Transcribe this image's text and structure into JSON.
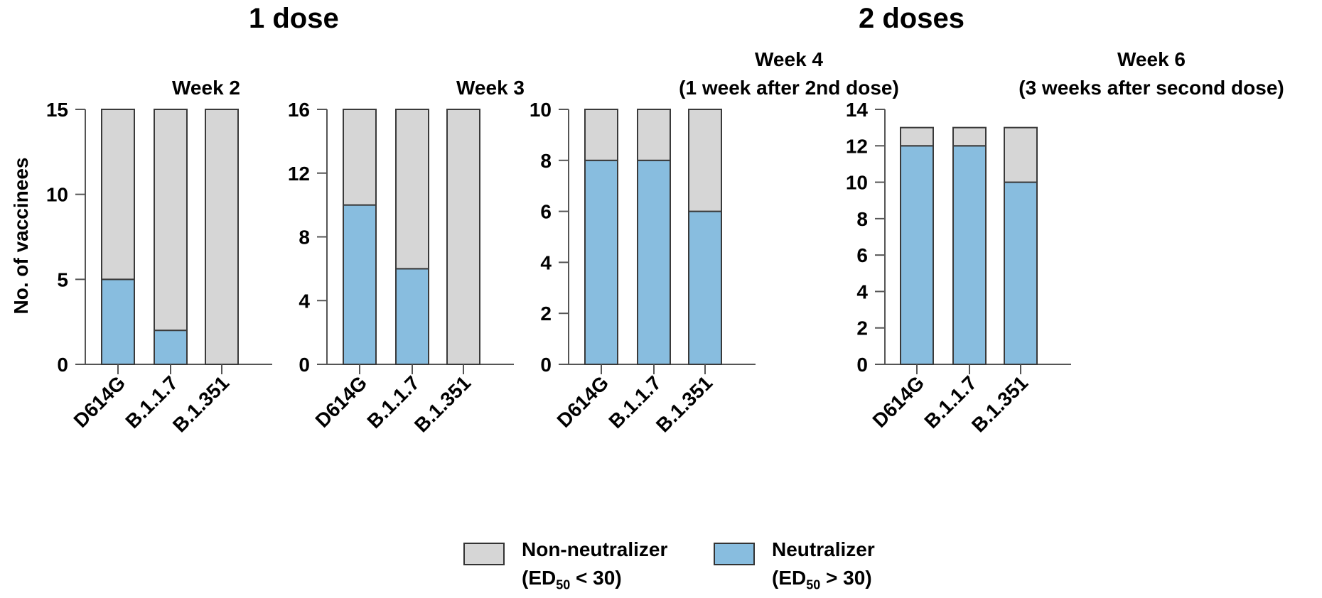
{
  "chart_data": [
    {
      "type": "bar",
      "stacked": true,
      "group": "1 dose",
      "title": "Week 2",
      "title_line2": "",
      "ylabel": "No. of vaccinees",
      "ylim": [
        0,
        15
      ],
      "yticks": [
        0,
        5,
        10,
        15
      ],
      "categories": [
        "D614G",
        "B.1.1.7",
        "B.1.351"
      ],
      "series": [
        {
          "name": "Neutralizer",
          "values": [
            5,
            2,
            0
          ]
        },
        {
          "name": "Non-neutralizer",
          "values": [
            10,
            13,
            15
          ]
        }
      ]
    },
    {
      "type": "bar",
      "stacked": true,
      "group": "1 dose",
      "title": "Week 3",
      "title_line2": "",
      "ylabel": "",
      "ylim": [
        0,
        16
      ],
      "yticks": [
        0,
        4,
        8,
        12,
        16
      ],
      "categories": [
        "D614G",
        "B.1.1.7",
        "B.1.351"
      ],
      "series": [
        {
          "name": "Neutralizer",
          "values": [
            10,
            6,
            0
          ]
        },
        {
          "name": "Non-neutralizer",
          "values": [
            6,
            10,
            16
          ]
        }
      ]
    },
    {
      "type": "bar",
      "stacked": true,
      "group": "2 doses",
      "title": "Week 4",
      "title_line2": "(1 week after 2nd dose)",
      "ylabel": "",
      "ylim": [
        0,
        10
      ],
      "yticks": [
        0,
        2,
        4,
        6,
        8,
        10
      ],
      "categories": [
        "D614G",
        "B.1.1.7",
        "B.1.351"
      ],
      "series": [
        {
          "name": "Neutralizer",
          "values": [
            8,
            8,
            6
          ]
        },
        {
          "name": "Non-neutralizer",
          "values": [
            2,
            2,
            4
          ]
        }
      ]
    },
    {
      "type": "bar",
      "stacked": true,
      "group": "2 doses",
      "title": "Week 6",
      "title_line2": "(3 weeks after second dose)",
      "ylabel": "",
      "ylim": [
        0,
        14
      ],
      "yticks": [
        0,
        2,
        4,
        6,
        8,
        10,
        12,
        14
      ],
      "categories": [
        "D614G",
        "B.1.1.7",
        "B.1.351"
      ],
      "series": [
        {
          "name": "Neutralizer",
          "values": [
            12,
            12,
            10
          ]
        },
        {
          "name": "Non-neutralizer",
          "values": [
            1,
            1,
            3
          ]
        }
      ]
    }
  ],
  "groups": {
    "one_dose": "1 dose",
    "two_doses": "2 doses"
  },
  "ylabel": "No. of vaccinees",
  "legend": {
    "non_neutralizer": {
      "label": "Non-neutralizer",
      "sub_prefix": "(ED",
      "sub_index": "50",
      "sub_suffix": " < 30)"
    },
    "neutralizer": {
      "label": "Neutralizer",
      "sub_prefix": "(ED",
      "sub_index": "50",
      "sub_suffix": " > 30)"
    }
  },
  "colors": {
    "neutralizer": "#88bddf",
    "non_neutralizer": "#d6d6d6",
    "outline": "#3a3a3a",
    "axis": "#555555"
  }
}
